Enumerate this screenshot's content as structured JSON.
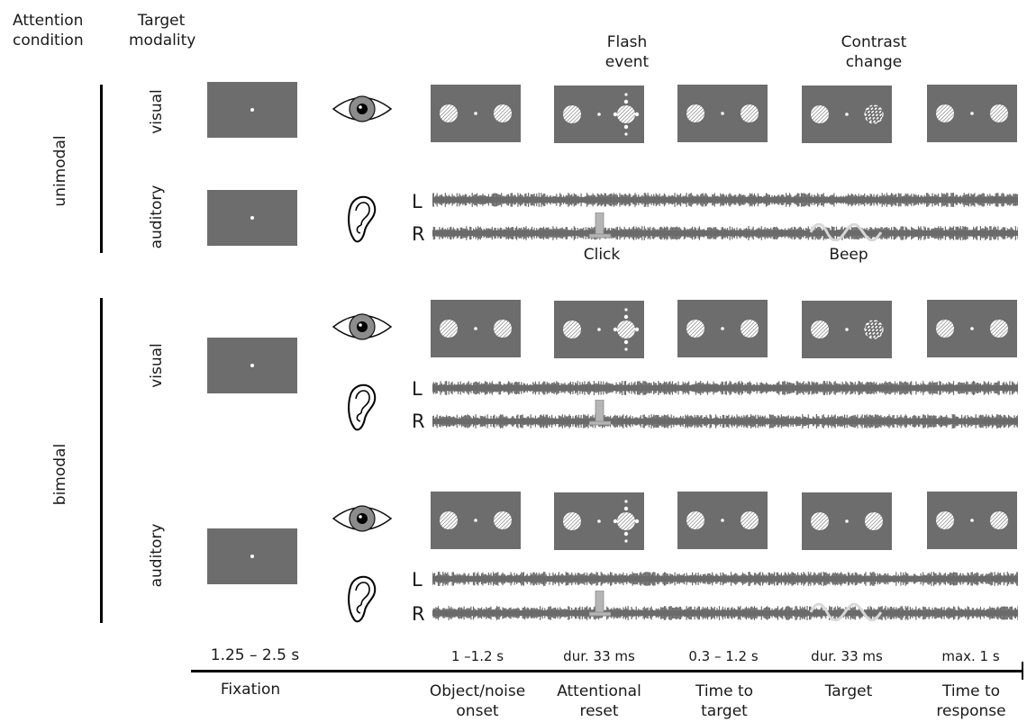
{
  "header": {
    "attention_line1": "Attention",
    "attention_line2": "condition",
    "target_line1": "Target",
    "target_line2": "modality",
    "flash_line1": "Flash",
    "flash_line2": "event",
    "contrast_line1": "Contrast",
    "contrast_line2": "change"
  },
  "conditions": {
    "unimodal": "unimodal",
    "bimodal": "bimodal"
  },
  "modalities": {
    "visual": "visual",
    "auditory": "auditory"
  },
  "channels": {
    "left": "L",
    "right": "R"
  },
  "annotations": {
    "click": "Click",
    "beep": "Beep"
  },
  "durations": [
    "1.25 – 2.5 s",
    "1 –1.2 s",
    "dur. 33 ms",
    "0.3 – 1.2 s",
    "dur. 33 ms",
    "max. 1 s"
  ],
  "phases": [
    {
      "line1": "Fixation",
      "line2": ""
    },
    {
      "line1": "Object/noise",
      "line2": "onset"
    },
    {
      "line1": "Attentional",
      "line2": "reset"
    },
    {
      "line1": "Time to",
      "line2": "target"
    },
    {
      "line1": "Target",
      "line2": ""
    },
    {
      "line1": "Time to",
      "line2": "response"
    }
  ],
  "icons": {
    "eye": "eye-icon",
    "ear": "ear-icon"
  },
  "colors": {
    "panel": "#6d6d6d",
    "noise": "#6a6a6a",
    "click": "#b5b5b5",
    "stimulus": "#ffffff"
  }
}
